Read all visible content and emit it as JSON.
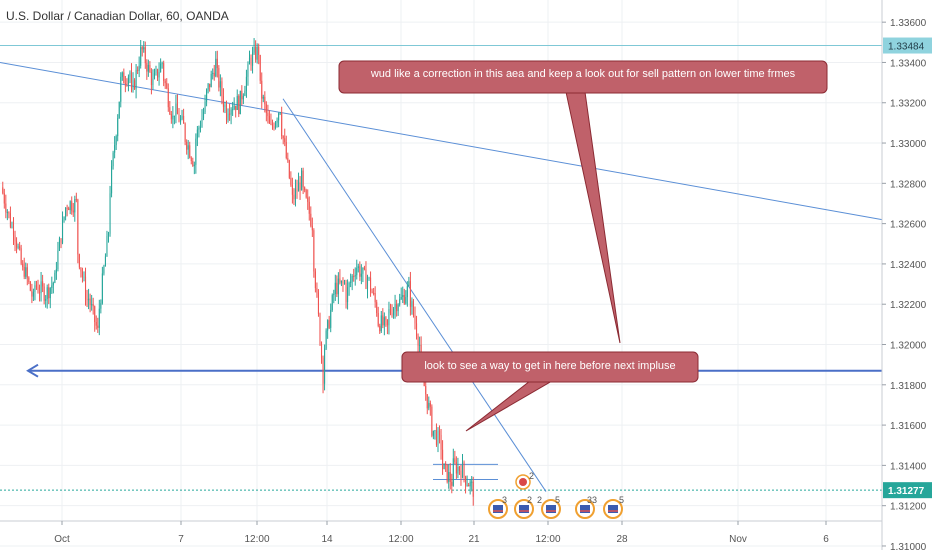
{
  "header": {
    "title": "U.S. Dollar / Canadian Dollar, 60, OANDA"
  },
  "price_axis": {
    "ticks": [
      "1.33600",
      "1.33400",
      "1.33200",
      "1.33000",
      "1.32800",
      "1.32600",
      "1.32400",
      "1.32200",
      "1.32000",
      "1.31800",
      "1.31600",
      "1.31400",
      "1.31200",
      "1.31000"
    ],
    "top_badge": "1.33484",
    "current_badge": "1.31277"
  },
  "time_axis": {
    "labels": [
      "Oct",
      "7",
      "12:00",
      "14",
      "12:00",
      "21",
      "12:00",
      "28",
      "Nov",
      "6"
    ]
  },
  "annotations": {
    "callout_top": "wud like a correction in this aea and keep a look out for sell pattern on lower time frmes",
    "callout_bottom": "look to see a way to get in here before next impluse"
  },
  "events": {
    "canada_count": "2",
    "us_counts": [
      "3",
      "2",
      "2",
      "5",
      "33",
      "5"
    ]
  },
  "colors": {
    "bull_candle": "#26a69a",
    "bear_candle": "#ef5350",
    "trendline": "#5b8fd6",
    "horizontal_support": "#4a6fc7",
    "resistance_line": "#7fc8d6",
    "callout_fill": "#c0616a",
    "callout_border": "#8b2a33",
    "current_price_badge": "#26a69a",
    "top_badge": "#8fd3de"
  },
  "chart_data": {
    "type": "candlestick",
    "symbol": "U.S. Dollar / Canadian Dollar",
    "interval": "60",
    "source": "OANDA",
    "ylim": [
      1.3098,
      1.3371
    ],
    "x_labels": [
      "Oct",
      "7",
      "12:00",
      "14",
      "12:00",
      "21",
      "12:00",
      "28",
      "Nov",
      "6"
    ],
    "price_path": [
      [
        1.3278,
        1.3258
      ],
      [
        1.3262,
        1.3236
      ],
      [
        1.324,
        1.3222
      ],
      [
        1.323,
        1.3226
      ],
      [
        1.3224,
        1.3232
      ],
      [
        1.3236,
        1.3268
      ],
      [
        1.327,
        1.327
      ],
      [
        1.325,
        1.3222
      ],
      [
        1.3226,
        1.3206
      ],
      [
        1.3212,
        1.3256
      ],
      [
        1.327,
        1.3322
      ],
      [
        1.333,
        1.3335
      ],
      [
        1.332,
        1.3345
      ],
      [
        1.3348,
        1.3332
      ],
      [
        1.3328,
        1.334
      ],
      [
        1.3336,
        1.3312
      ],
      [
        1.3318,
        1.3308
      ],
      [
        1.3305,
        1.329
      ],
      [
        1.33,
        1.3318
      ],
      [
        1.3322,
        1.334
      ],
      [
        1.3336,
        1.3315
      ],
      [
        1.3318,
        1.332
      ],
      [
        1.3316,
        1.3335
      ],
      [
        1.334,
        1.3346
      ],
      [
        1.333,
        1.3308
      ],
      [
        1.3305,
        1.3318
      ],
      [
        1.3312,
        1.3278
      ],
      [
        1.327,
        1.3282
      ],
      [
        1.3278,
        1.326
      ],
      [
        1.325,
        1.3185
      ],
      [
        1.3195,
        1.3225
      ],
      [
        1.3228,
        1.323
      ],
      [
        1.3222,
        1.3238
      ],
      [
        1.324,
        1.3232
      ],
      [
        1.3236,
        1.3218
      ],
      [
        1.3212,
        1.3208
      ],
      [
        1.3215,
        1.3222
      ],
      [
        1.322,
        1.3228
      ],
      [
        1.3226,
        1.32
      ],
      [
        1.319,
        1.3165
      ],
      [
        1.316,
        1.315
      ],
      [
        1.314,
        1.3132
      ],
      [
        1.314,
        1.3138
      ],
      [
        1.3136,
        1.3128
      ]
    ],
    "lines": [
      {
        "kind": "horizontal",
        "price": 1.33484,
        "style": "resistance"
      },
      {
        "kind": "horizontal",
        "price": 1.3187,
        "style": "support-arrow-left"
      },
      {
        "kind": "horizontal",
        "price": 1.31277,
        "style": "current-price-dotted"
      },
      {
        "kind": "trend",
        "from": [
          0,
          1.334
        ],
        "to": "far-right",
        "endPrice": 1.3262
      },
      {
        "kind": "trend",
        "from": [
          1.3322
        ],
        "to": [
          1.3127
        ]
      }
    ]
  }
}
